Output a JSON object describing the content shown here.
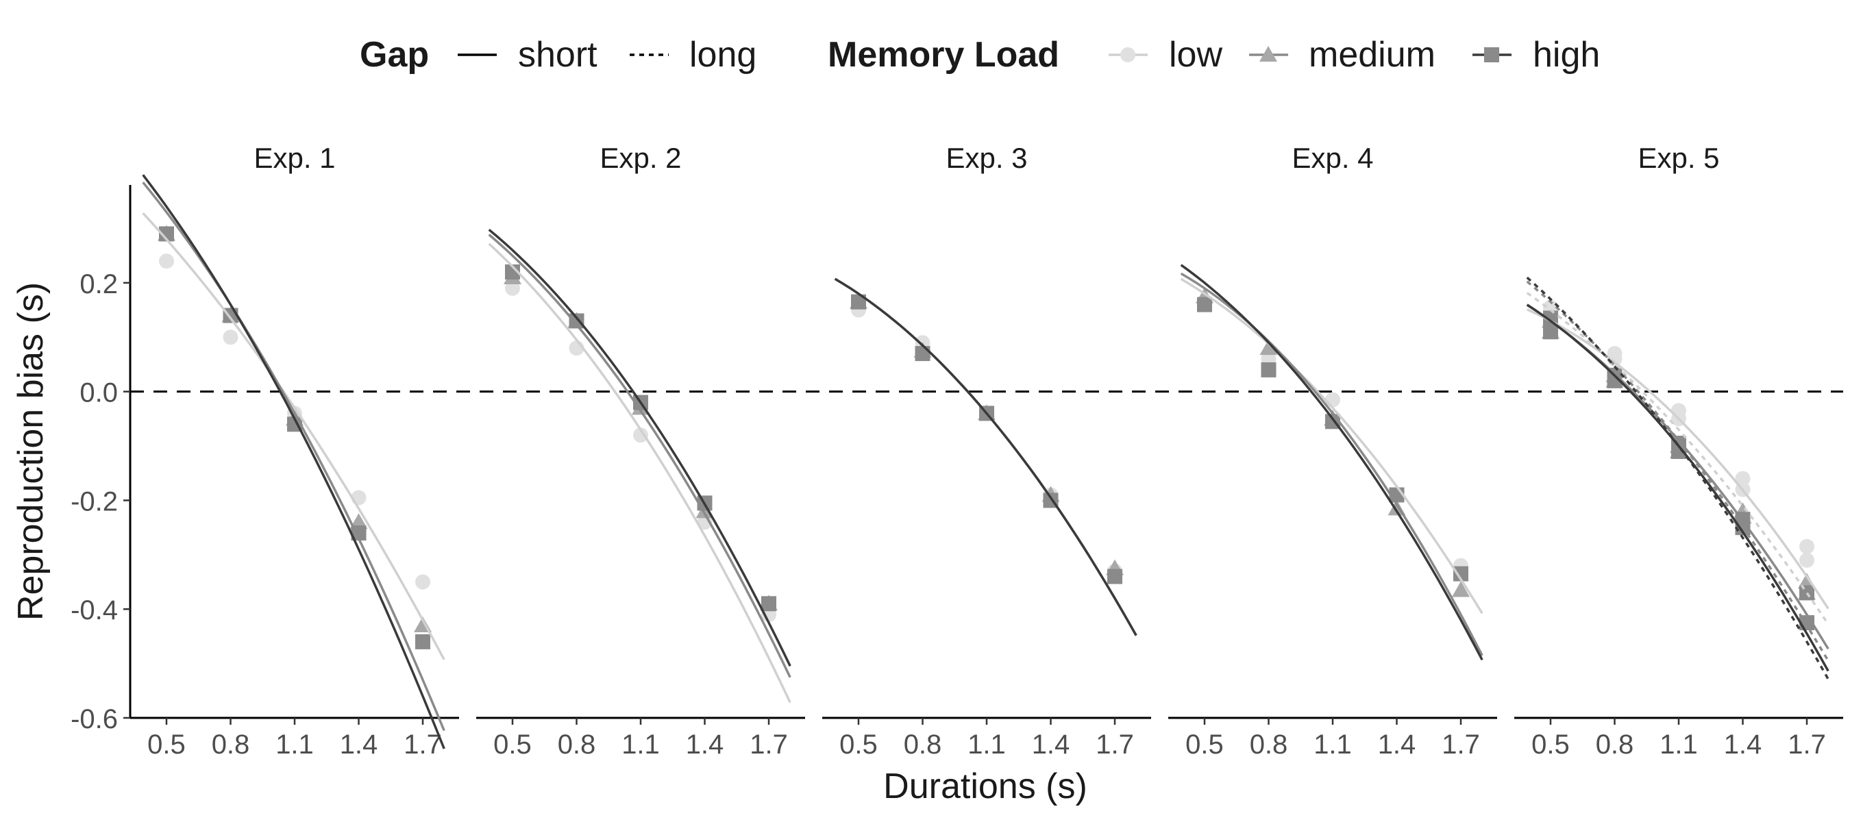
{
  "chart_data": {
    "type": "line",
    "xlabel": "Durations (s)",
    "ylabel": "Reproduction bias (s)",
    "x_ticks": [
      "0.5",
      "0.8",
      "1.1",
      "1.4",
      "1.7"
    ],
    "x_tick_values": [
      0.5,
      0.8,
      1.1,
      1.4,
      1.7
    ],
    "y_ticks": [
      "0.2",
      "0.0",
      "-0.2",
      "-0.4",
      "-0.6"
    ],
    "y_tick_values": [
      0.2,
      0.0,
      -0.2,
      -0.4,
      -0.6
    ],
    "xlim": [
      0.33,
      1.87
    ],
    "ylim": [
      -0.6,
      0.38
    ],
    "reference_line": {
      "y": 0,
      "style": "dashed"
    },
    "legend": {
      "placement": "top",
      "groups": [
        {
          "title": "Gap",
          "entries": [
            {
              "label": "short",
              "linestyle": "solid"
            },
            {
              "label": "long",
              "linestyle": "dotted"
            }
          ]
        },
        {
          "title": "Memory Load",
          "entries": [
            {
              "label": "low",
              "marker": "circle",
              "color": "#d3d3d3"
            },
            {
              "label": "medium",
              "marker": "triangle",
              "color": "#9e9e9e"
            },
            {
              "label": "high",
              "marker": "square",
              "color": "#777777"
            }
          ]
        }
      ]
    },
    "line_colors": {
      "low": "#d0d0d0",
      "medium": "#8a8a8a",
      "high": "#3a3a3a"
    },
    "marker_colors": {
      "low": "#e0e0e0",
      "medium": "#a8a8a8",
      "high": "#8a8a8a"
    },
    "panels": [
      {
        "title": "Exp. 1",
        "series": [
          {
            "gap": "short",
            "load": "low",
            "points": [
              0.24,
              0.1,
              -0.04,
              -0.195,
              -0.35
            ],
            "fit": [
              0.28,
              0.14,
              -0.03,
              -0.22,
              -0.42
            ]
          },
          {
            "gap": "short",
            "load": "medium",
            "points": [
              0.29,
              0.14,
              -0.05,
              -0.24,
              -0.43
            ],
            "fit": [
              0.33,
              0.15,
              -0.04,
              -0.26,
              -0.53
            ]
          },
          {
            "gap": "short",
            "load": "high",
            "points": [
              0.29,
              0.14,
              -0.06,
              -0.26,
              -0.46
            ],
            "fit": [
              0.34,
              0.14,
              -0.05,
              -0.28,
              -0.56
            ]
          }
        ]
      },
      {
        "title": "Exp. 2",
        "series": [
          {
            "gap": "short",
            "load": "low",
            "points": [
              0.19,
              0.08,
              -0.08,
              -0.24,
              -0.41
            ],
            "fit": [
              0.23,
              0.09,
              -0.07,
              -0.26,
              -0.49
            ]
          },
          {
            "gap": "short",
            "load": "medium",
            "points": [
              0.21,
              0.13,
              -0.03,
              -0.22,
              -0.39
            ],
            "fit": [
              0.25,
              0.12,
              -0.035,
              -0.22,
              -0.445
            ]
          },
          {
            "gap": "short",
            "load": "high",
            "points": [
              0.22,
              0.13,
              -0.02,
              -0.205,
              -0.39
            ],
            "fit": [
              0.26,
              0.13,
              -0.02,
              -0.2,
              -0.425
            ]
          }
        ]
      },
      {
        "title": "Exp. 3",
        "series": [
          {
            "gap": "short",
            "load": "low",
            "points": [
              0.15,
              0.09,
              -0.04,
              -0.19,
              -0.33
            ],
            "fit": [
              0.18,
              0.08,
              -0.04,
              -0.19,
              -0.38
            ]
          },
          {
            "gap": "short",
            "load": "medium",
            "points": [
              0.165,
              0.075,
              -0.04,
              -0.19,
              -0.325
            ],
            "fit": [
              0.18,
              0.08,
              -0.04,
              -0.19,
              -0.38
            ]
          },
          {
            "gap": "short",
            "load": "high",
            "points": [
              0.165,
              0.07,
              -0.04,
              -0.2,
              -0.34
            ],
            "fit": [
              0.18,
              0.08,
              -0.04,
              -0.19,
              -0.38
            ]
          }
        ]
      },
      {
        "title": "Exp. 4",
        "series": [
          {
            "gap": "short",
            "load": "low",
            "points": [
              0.165,
              0.06,
              -0.015,
              -0.19,
              -0.32
            ],
            "fit": [
              0.18,
              0.08,
              -0.03,
              -0.17,
              -0.345
            ]
          },
          {
            "gap": "short",
            "load": "medium",
            "points": [
              0.175,
              0.08,
              -0.05,
              -0.215,
              -0.365
            ],
            "fit": [
              0.19,
              0.09,
              -0.04,
              -0.2,
              -0.41
            ]
          },
          {
            "gap": "short",
            "load": "high",
            "points": [
              0.16,
              0.04,
              -0.055,
              -0.19,
              -0.335
            ],
            "fit": [
              0.2,
              0.09,
              -0.05,
              -0.21,
              -0.42
            ]
          }
        ]
      },
      {
        "title": "Exp. 5",
        "series": [
          {
            "gap": "short",
            "load": "low",
            "points": [
              0.15,
              0.07,
              -0.035,
              -0.16,
              -0.285
            ],
            "fit": [
              0.13,
              0.05,
              -0.05,
              -0.175,
              -0.34
            ]
          },
          {
            "gap": "short",
            "load": "medium",
            "points": [
              0.11,
              0.02,
              -0.11,
              -0.22,
              -0.35
            ],
            "fit": [
              0.13,
              0.03,
              -0.09,
              -0.235,
              -0.41
            ]
          },
          {
            "gap": "short",
            "load": "high",
            "points": [
              0.11,
              0.02,
              -0.095,
              -0.235,
              -0.37
            ],
            "fit": [
              0.13,
              0.025,
              -0.1,
              -0.25,
              -0.445
            ]
          },
          {
            "gap": "long",
            "load": "low",
            "points": [
              0.155,
              0.06,
              -0.05,
              -0.18,
              -0.31
            ],
            "fit": [
              0.15,
              0.05,
              -0.07,
              -0.2,
              -0.37
            ]
          },
          {
            "gap": "long",
            "load": "medium",
            "points": [
              0.13,
              0.03,
              -0.1,
              -0.23,
              -0.37
            ],
            "fit": [
              0.165,
              0.04,
              -0.09,
              -0.25,
              -0.43
            ]
          },
          {
            "gap": "long",
            "load": "high",
            "points": [
              0.135,
              0.03,
              -0.11,
              -0.25,
              -0.425
            ],
            "fit": [
              0.17,
              0.04,
              -0.1,
              -0.26,
              -0.46
            ]
          }
        ]
      }
    ]
  }
}
